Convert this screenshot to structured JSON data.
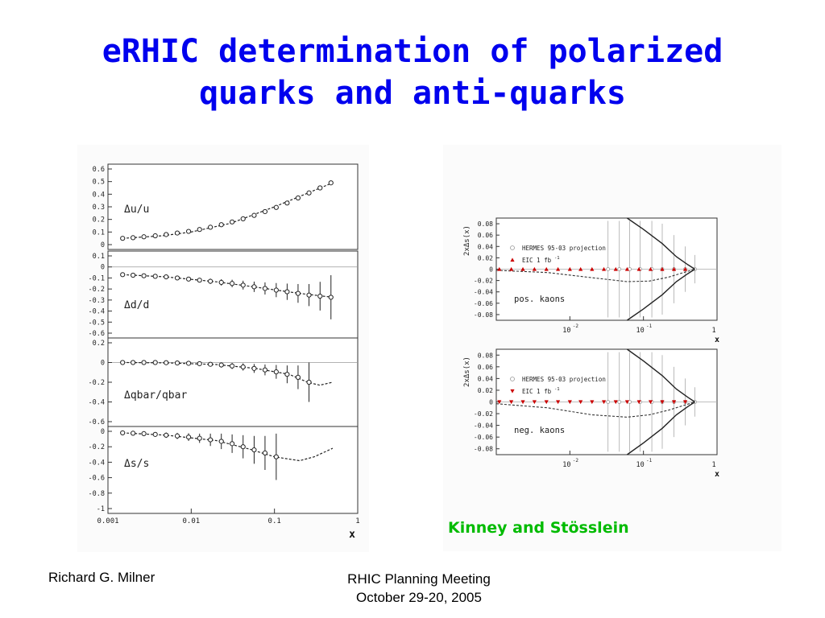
{
  "slide": {
    "title_line1": "eRHIC determination of polarized",
    "title_line2": "quarks and anti-quarks",
    "credit": "Kinney and Stösslein",
    "footer_left": "Richard G. Milner",
    "footer_right_line1": "RHIC Planning Meeting",
    "footer_right_line2": "October 29-20, 2005",
    "colors": {
      "title": "#0000ee",
      "credit": "#00bb00",
      "eic_points": "#cc0000"
    }
  },
  "chart_data": [
    {
      "type": "scatter",
      "xlabel": "x",
      "xscale": "log",
      "xlim": [
        0.001,
        1
      ],
      "xticks": [
        "0.001",
        "0.01",
        "0.1",
        "1"
      ],
      "panels": [
        {
          "label": "Δu/u",
          "ylim": [
            0,
            0.6
          ],
          "yticks": [
            "0.6",
            "0.5",
            "0.4",
            "0.3",
            "0.2",
            "0.1",
            "0"
          ],
          "x": [
            0.0015,
            0.002,
            0.0027,
            0.0037,
            0.005,
            0.0068,
            0.0093,
            0.0126,
            0.017,
            0.023,
            0.031,
            0.042,
            0.057,
            0.077,
            0.105,
            0.142,
            0.192,
            0.26,
            0.353,
            0.477
          ],
          "y": [
            0.05,
            0.055,
            0.062,
            0.07,
            0.08,
            0.092,
            0.105,
            0.12,
            0.138,
            0.158,
            0.18,
            0.205,
            0.232,
            0.262,
            0.295,
            0.33,
            0.37,
            0.41,
            0.45,
            0.49
          ],
          "err": [
            0.004,
            0.004,
            0.004,
            0.004,
            0.004,
            0.004,
            0.004,
            0.004,
            0.004,
            0.004,
            0.004,
            0.004,
            0.004,
            0.004,
            0.004,
            0.004,
            0.004,
            0.005,
            0.006,
            0.008
          ],
          "curve_x": [
            0.0015,
            0.0045,
            0.01,
            0.03,
            0.1,
            0.5
          ],
          "curve_y": [
            0.05,
            0.07,
            0.1,
            0.17,
            0.3,
            0.49
          ]
        },
        {
          "label": "Δd/d",
          "ylim": [
            -0.6,
            0.1
          ],
          "yticks": [
            "0.1",
            "0",
            "-0.1",
            "-0.2",
            "-0.3",
            "-0.4",
            "-0.5",
            "-0.6"
          ],
          "x": [
            0.0015,
            0.002,
            0.0027,
            0.0037,
            0.005,
            0.0068,
            0.0093,
            0.0126,
            0.017,
            0.023,
            0.031,
            0.042,
            0.057,
            0.077,
            0.105,
            0.142,
            0.192,
            0.26,
            0.353,
            0.477
          ],
          "y": [
            -0.07,
            -0.075,
            -0.08,
            -0.085,
            -0.09,
            -0.1,
            -0.11,
            -0.12,
            -0.13,
            -0.14,
            -0.15,
            -0.165,
            -0.18,
            -0.195,
            -0.21,
            -0.225,
            -0.24,
            -0.255,
            -0.265,
            -0.275
          ],
          "err": [
            0.008,
            0.008,
            0.009,
            0.01,
            0.012,
            0.014,
            0.017,
            0.02,
            0.024,
            0.029,
            0.034,
            0.04,
            0.047,
            0.055,
            0.064,
            0.074,
            0.085,
            0.1,
            0.13,
            0.2
          ],
          "curve_x": [
            0.0015,
            0.005,
            0.02,
            0.05,
            0.2,
            0.5
          ],
          "curve_y": [
            -0.07,
            -0.09,
            -0.135,
            -0.175,
            -0.24,
            -0.275
          ]
        },
        {
          "label": "Δqbar/qbar",
          "ylim": [
            -0.6,
            0.2
          ],
          "yticks": [
            "0.2",
            "0",
            "-0.2",
            "-0.4",
            "-0.6"
          ],
          "x": [
            0.0015,
            0.002,
            0.0027,
            0.0037,
            0.005,
            0.0068,
            0.0093,
            0.0126,
            0.017,
            0.023,
            0.031,
            0.042,
            0.057,
            0.077,
            0.105,
            0.142,
            0.192,
            0.26
          ],
          "y": [
            0.0,
            0.0,
            0.0,
            0.0,
            -0.002,
            -0.005,
            -0.008,
            -0.012,
            -0.018,
            -0.025,
            -0.035,
            -0.045,
            -0.06,
            -0.075,
            -0.095,
            -0.12,
            -0.15,
            -0.2
          ],
          "err": [
            0.006,
            0.006,
            0.007,
            0.008,
            0.01,
            0.012,
            0.015,
            0.018,
            0.022,
            0.026,
            0.031,
            0.037,
            0.045,
            0.055,
            0.07,
            0.09,
            0.12,
            0.2
          ],
          "curve_x": [
            0.0015,
            0.005,
            0.02,
            0.06,
            0.15,
            0.25,
            0.35,
            0.5
          ],
          "curve_y": [
            0.0,
            -0.003,
            -0.02,
            -0.06,
            -0.12,
            -0.2,
            -0.23,
            -0.2
          ]
        },
        {
          "label": "Δs/s",
          "ylim": [
            -1,
            0
          ],
          "yticks": [
            "0",
            "-0.2",
            "-0.4",
            "-0.6",
            "-0.8",
            "-1"
          ],
          "x": [
            0.0015,
            0.002,
            0.0027,
            0.0037,
            0.005,
            0.0068,
            0.0093,
            0.0126,
            0.017,
            0.023,
            0.031,
            0.042,
            0.057,
            0.077,
            0.105
          ],
          "y": [
            -0.02,
            -0.025,
            -0.03,
            -0.04,
            -0.05,
            -0.06,
            -0.075,
            -0.09,
            -0.11,
            -0.13,
            -0.16,
            -0.2,
            -0.24,
            -0.28,
            -0.33
          ],
          "err": [
            0.03,
            0.03,
            0.03,
            0.03,
            0.035,
            0.04,
            0.05,
            0.06,
            0.08,
            0.1,
            0.12,
            0.15,
            0.18,
            0.22,
            0.3
          ],
          "curve_x": [
            0.0015,
            0.005,
            0.02,
            0.05,
            0.1,
            0.2,
            0.3,
            0.5
          ],
          "curve_y": [
            -0.02,
            -0.05,
            -0.12,
            -0.23,
            -0.33,
            -0.38,
            -0.33,
            -0.22
          ]
        }
      ]
    },
    {
      "type": "scatter",
      "xlabel": "x",
      "ylabel": "2xΔs(x)",
      "xscale": "log",
      "xlim": [
        0.001,
        1
      ],
      "xticks": [
        "10",
        "10",
        "1"
      ],
      "xtick_exponents": [
        "-2",
        "-1",
        ""
      ],
      "yticks": [
        "0.08",
        "0.06",
        "0.04",
        "0.02",
        "0",
        "-0.02",
        "-0.04",
        "-0.06",
        "-0.08"
      ],
      "ylim": [
        -0.09,
        0.09
      ],
      "panels": [
        {
          "label": "pos. kaons",
          "legend": [
            "HERMES 95-03 projection",
            "EIC 1 fb"
          ],
          "legend_superscript": "-1",
          "marker": "triangle-up",
          "x": [
            0.0011,
            0.0016,
            0.0023,
            0.0033,
            0.0048,
            0.0069,
            0.01,
            0.014,
            0.02,
            0.029,
            0.042,
            0.06,
            0.087,
            0.125,
            0.18,
            0.26,
            0.37
          ],
          "y": [
            0,
            0,
            0,
            0,
            0,
            0,
            0,
            0,
            0,
            0,
            0,
            0,
            0,
            0,
            0,
            0,
            0
          ],
          "err": [
            0.001,
            0.001,
            0.001,
            0.001,
            0.001,
            0.001,
            0.001,
            0.001,
            0.002,
            0.002,
            0.003,
            0.004,
            0.006,
            0.008,
            0.01,
            0.012,
            0.015
          ],
          "hermes_x": [
            0.033,
            0.047,
            0.065,
            0.09,
            0.13,
            0.18,
            0.26,
            0.37,
            0.5
          ],
          "hermes_err": [
            0.085,
            0.085,
            0.085,
            0.085,
            0.085,
            0.08,
            0.06,
            0.04,
            0.025
          ],
          "curve_x": [
            0.001,
            0.005,
            0.02,
            0.06,
            0.12,
            0.22,
            0.35,
            0.5
          ],
          "curve_y": [
            -0.002,
            -0.006,
            -0.015,
            -0.022,
            -0.021,
            -0.014,
            -0.006,
            0.0
          ],
          "band_x": [
            0.06,
            0.1,
            0.18,
            0.28,
            0.4,
            0.5
          ],
          "band_upper": [
            0.09,
            0.07,
            0.045,
            0.022,
            0.008,
            0.0
          ],
          "band_lower": [
            -0.09,
            -0.07,
            -0.045,
            -0.022,
            -0.008,
            0.0
          ]
        },
        {
          "label": "neg. kaons",
          "legend": [
            "HERMES 95-03 projection",
            "EIC 1 fb"
          ],
          "legend_superscript": "-1",
          "marker": "triangle-down",
          "x": [
            0.0011,
            0.0016,
            0.0023,
            0.0033,
            0.0048,
            0.0069,
            0.01,
            0.014,
            0.02,
            0.029,
            0.042,
            0.06,
            0.087,
            0.125,
            0.18,
            0.26,
            0.37
          ],
          "y": [
            0,
            0,
            0,
            0,
            0,
            0,
            0,
            0,
            0,
            0,
            0,
            0,
            0,
            0,
            0,
            0,
            0
          ],
          "err": [
            0.001,
            0.001,
            0.001,
            0.001,
            0.001,
            0.001,
            0.001,
            0.001,
            0.002,
            0.002,
            0.003,
            0.004,
            0.006,
            0.008,
            0.01,
            0.012,
            0.015
          ],
          "hermes_x": [
            0.033,
            0.047,
            0.065,
            0.09,
            0.13,
            0.18,
            0.26,
            0.37,
            0.5
          ],
          "hermes_err": [
            0.085,
            0.085,
            0.085,
            0.085,
            0.085,
            0.08,
            0.06,
            0.04,
            0.025
          ],
          "curve_x": [
            0.001,
            0.005,
            0.02,
            0.06,
            0.12,
            0.22,
            0.35,
            0.5
          ],
          "curve_y": [
            -0.003,
            -0.01,
            -0.022,
            -0.026,
            -0.022,
            -0.014,
            -0.006,
            0.0
          ],
          "band_x": [
            0.06,
            0.1,
            0.18,
            0.28,
            0.4,
            0.5
          ],
          "band_upper": [
            0.09,
            0.07,
            0.045,
            0.022,
            0.008,
            0.0
          ],
          "band_lower": [
            -0.09,
            -0.07,
            -0.045,
            -0.022,
            -0.008,
            0.0
          ]
        }
      ]
    }
  ]
}
